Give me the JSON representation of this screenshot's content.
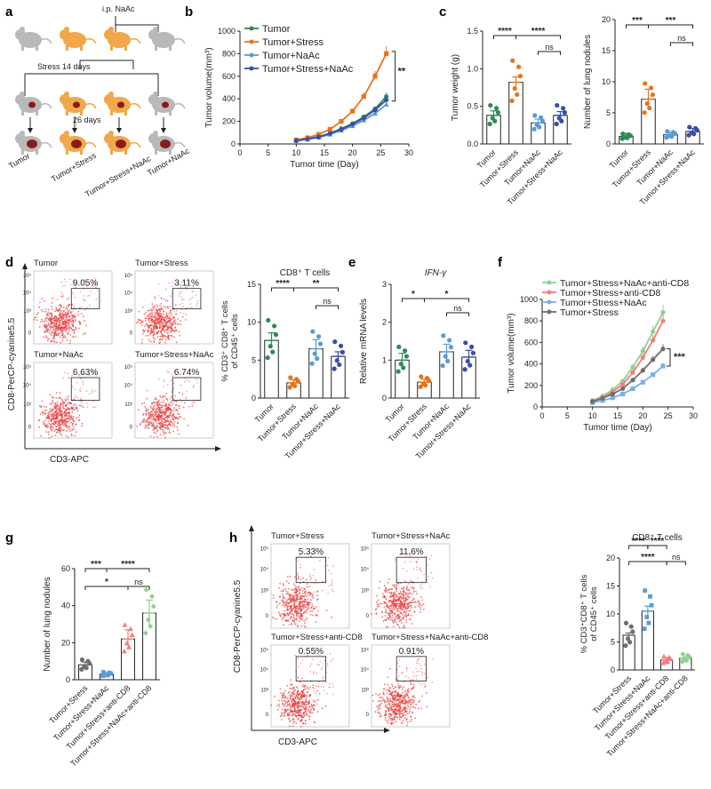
{
  "panels": {
    "a": "a",
    "b": "b",
    "c": "c",
    "d": "d",
    "e": "e",
    "f": "f",
    "g": "g",
    "h": "h"
  },
  "colors": {
    "tumor": "#2e8b57",
    "stress": "#e8731c",
    "naac": "#5b9bd5",
    "stress_naac": "#3b4ea8",
    "gray": "#6e6e6e",
    "pink": "#f08080",
    "lightgreen": "#8fd18f",
    "flow": "#e83a3a"
  },
  "panel_a": {
    "ip_label": "i.p. NaAc",
    "stress_label": "Stress 14 days",
    "days_label": "26 days",
    "groups": [
      "Tumor",
      "Tumor+Stress",
      "Tumor+Stress+NaAc",
      "Tumor+NaAc"
    ]
  },
  "chart_data": [
    {
      "id": "b",
      "type": "line",
      "title": "",
      "xlabel": "Tumor time (Day)",
      "ylabel": "Tumor volume(mm³)",
      "xlim": [
        0,
        30
      ],
      "ylim": [
        0,
        1000
      ],
      "xticks": [
        0,
        5,
        10,
        15,
        20,
        25,
        30
      ],
      "yticks": [
        0,
        200,
        400,
        600,
        800,
        1000
      ],
      "x": [
        10,
        12,
        14,
        16,
        18,
        20,
        22,
        24,
        26
      ],
      "series": [
        {
          "name": "Tumor",
          "values": [
            30,
            45,
            65,
            95,
            135,
            180,
            240,
            310,
            420
          ]
        },
        {
          "name": "Tumor+Stress",
          "values": [
            35,
            55,
            85,
            130,
            200,
            290,
            420,
            600,
            800
          ]
        },
        {
          "name": "Tumor+NaAc",
          "values": [
            28,
            40,
            58,
            85,
            120,
            160,
            210,
            270,
            350
          ]
        },
        {
          "name": "Tumor+Stress+NaAc",
          "values": [
            30,
            44,
            62,
            92,
            130,
            175,
            230,
            300,
            390
          ]
        }
      ],
      "annotation": "**"
    },
    {
      "id": "c1",
      "type": "bar",
      "ylabel": "Tumor weight (g)",
      "ylim": [
        0,
        1.5
      ],
      "yticks": [
        "0.0",
        "0.5",
        "1.0",
        "1.5"
      ],
      "categories": [
        "Tumor",
        "Tumor+Stress",
        "Tumor+NaAc",
        "Tumor+Stress+NaAc"
      ],
      "values": [
        0.38,
        0.82,
        0.28,
        0.38
      ],
      "errors": [
        0.06,
        0.07,
        0.05,
        0.05
      ],
      "sig": [
        "****",
        "****",
        "ns"
      ]
    },
    {
      "id": "c2",
      "type": "bar",
      "ylabel": "Number of lung nodules",
      "ylim": [
        0,
        20
      ],
      "yticks": [
        "0",
        "5",
        "10",
        "15",
        "20"
      ],
      "categories": [
        "Tumor",
        "Tumor+Stress",
        "Tumor+NaAc",
        "Tumor+Stress+NaAc"
      ],
      "values": [
        1.2,
        7.2,
        1.5,
        2.0
      ],
      "errors": [
        0.5,
        1.6,
        0.4,
        0.5
      ],
      "sig": [
        "***",
        "***",
        "ns"
      ]
    },
    {
      "id": "d",
      "type": "bar",
      "title": "CD8⁺ T cells",
      "ylabel": "% CD3⁺ CD8⁺ T cells of CD45⁺ cells",
      "ylim": [
        0,
        15
      ],
      "yticks": [
        "0",
        "5",
        "10",
        "15"
      ],
      "categories": [
        "Tumor",
        "Tumor+Stress",
        "Tumor+NaAc",
        "Tumor+Stress+NaAc"
      ],
      "values": [
        7.6,
        2.0,
        6.5,
        5.5
      ],
      "errors": [
        1.0,
        0.4,
        1.2,
        0.6
      ],
      "sig": [
        "****",
        "**",
        "ns"
      ]
    },
    {
      "id": "e",
      "type": "bar",
      "title": "IFN-γ",
      "ylabel": "Relative mRNA levels",
      "ylim": [
        0,
        3
      ],
      "yticks": [
        "0",
        "1",
        "2",
        "3"
      ],
      "categories": [
        "Tumor",
        "Tumor+Stress",
        "Tumor+NaAc",
        "Tumor+Stress+NaAc"
      ],
      "values": [
        1.0,
        0.42,
        1.22,
        1.08
      ],
      "errors": [
        0.18,
        0.08,
        0.2,
        0.18
      ],
      "sig": [
        "*",
        "*",
        "ns"
      ]
    },
    {
      "id": "f",
      "type": "line",
      "xlabel": "Tumor time (Day)",
      "ylabel": "Tumor volume(mm³)",
      "xlim": [
        0,
        30
      ],
      "ylim": [
        0,
        1000
      ],
      "xticks": [
        0,
        5,
        10,
        15,
        20,
        25,
        30
      ],
      "yticks": [
        0,
        200,
        400,
        600,
        800,
        1000
      ],
      "x": [
        10,
        12,
        14,
        16,
        18,
        20,
        22,
        24
      ],
      "series": [
        {
          "name": "Tumor+Stress+NaAc+anti-CD8",
          "values": [
            60,
            100,
            160,
            240,
            370,
            520,
            700,
            880
          ]
        },
        {
          "name": "Tumor+Stress+anti-CD8",
          "values": [
            55,
            90,
            140,
            210,
            320,
            460,
            620,
            800
          ]
        },
        {
          "name": "Tumor+Stress+NaAc",
          "values": [
            40,
            60,
            85,
            120,
            170,
            230,
            300,
            380
          ]
        },
        {
          "name": "Tumor+Stress",
          "values": [
            50,
            80,
            120,
            170,
            250,
            340,
            440,
            540
          ]
        }
      ],
      "annotation": "***"
    },
    {
      "id": "g",
      "type": "bar",
      "ylabel": "Number of lung nodules",
      "ylim": [
        0,
        60
      ],
      "yticks": [
        "0",
        "20",
        "40",
        "60"
      ],
      "categories": [
        "Tumor+Stress",
        "Tumor+Stress+NaAc",
        "Tumor+Stress+anti-CD8",
        "Tumor+Stress+NaAc+anti-CD8"
      ],
      "values": [
        8,
        3,
        22,
        36
      ],
      "errors": [
        1.5,
        0.8,
        5,
        7
      ],
      "sig": [
        "***",
        "****",
        "*",
        "ns"
      ]
    },
    {
      "id": "h",
      "type": "bar",
      "title": "CD8⁺ T cells",
      "ylabel": "% CD3⁺CD8⁺ T cells of CD45⁺ cells",
      "ylim": [
        0,
        20
      ],
      "yticks": [
        "0",
        "5",
        "10",
        "15",
        "20"
      ],
      "categories": [
        "Tumor+Stress",
        "Tumor+Stress+NaAc",
        "Tumor+Stress+anti-CD8",
        "Tumor+Stress+NaAc+anti-CD8"
      ],
      "values": [
        6.2,
        10.5,
        1.8,
        2.1
      ],
      "errors": [
        0.4,
        0.9,
        0.4,
        0.3
      ],
      "sig": [
        "****",
        "****",
        "****",
        "ns"
      ]
    }
  ],
  "flow_d": {
    "ylabel": "CD8-PerCP-cyanine5.5",
    "xlabel": "CD3-APC",
    "plots": [
      {
        "title": "Tumor",
        "pct": "9.05%"
      },
      {
        "title": "Tumor+Stress",
        "pct": "3.11%"
      },
      {
        "title": "Tumor+NaAc",
        "pct": "6.63%"
      },
      {
        "title": "Tumor+Stress+NaAc",
        "pct": "6.74%"
      }
    ],
    "ticks": [
      "0",
      "10³",
      "10⁴",
      "10⁵"
    ]
  },
  "flow_h": {
    "ylabel": "CD8-PerCP-cyanine5.5",
    "xlabel": "CD3-APC",
    "plots": [
      {
        "title": "Tumor+Stress",
        "pct": "5.33%"
      },
      {
        "title": "Tumor+Stress+NaAc",
        "pct": "11.6%"
      },
      {
        "title": "Tumor+Stress+anti-CD8",
        "pct": "0.55%"
      },
      {
        "title": "Tumor+Stress+NaAc+anti-CD8",
        "pct": "0.91%"
      }
    ],
    "ticks": [
      "0",
      "10³",
      "10⁴",
      "10⁵"
    ]
  }
}
